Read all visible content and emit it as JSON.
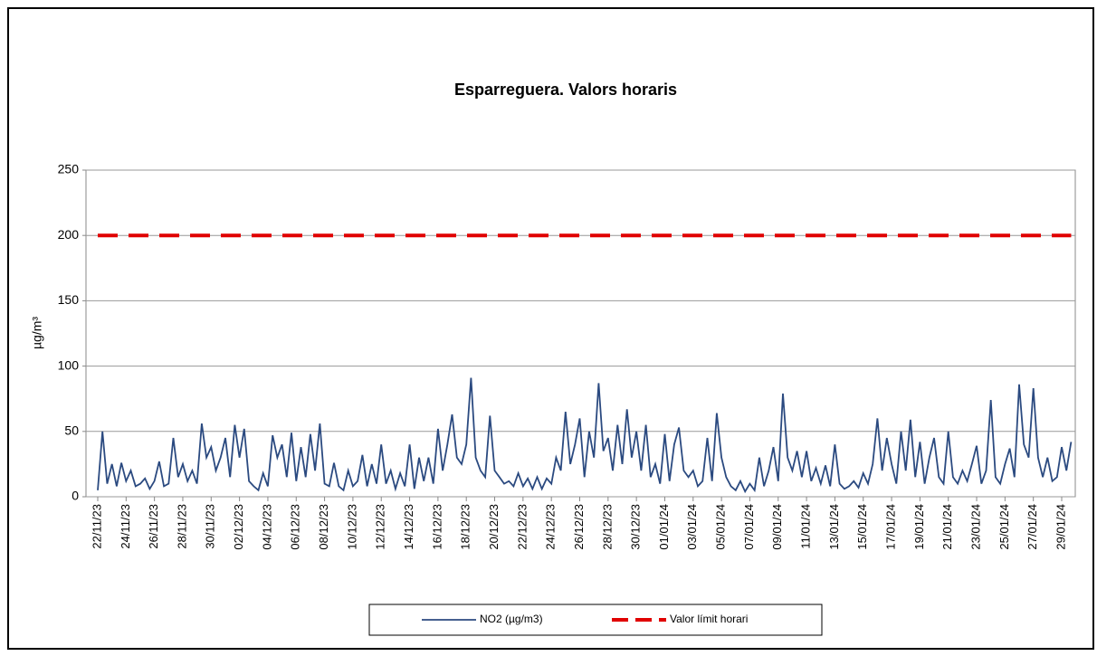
{
  "chart_data": {
    "type": "line",
    "title": "Esparreguera. Valors horaris",
    "ylabel": "µg/m³",
    "categories": [
      "22/11/23",
      null,
      null,
      null,
      null,
      null,
      "24/11/23",
      null,
      null,
      null,
      null,
      null,
      "26/11/23",
      null,
      null,
      null,
      null,
      null,
      "28/11/23",
      null,
      null,
      null,
      null,
      null,
      "30/11/23",
      null,
      null,
      null,
      null,
      null,
      "02/12/23",
      null,
      null,
      null,
      null,
      null,
      "04/12/23",
      null,
      null,
      null,
      null,
      null,
      "06/12/23",
      null,
      null,
      null,
      null,
      null,
      "08/12/23",
      null,
      null,
      null,
      null,
      null,
      "10/12/23",
      null,
      null,
      null,
      null,
      null,
      "12/12/23",
      null,
      null,
      null,
      null,
      null,
      "14/12/23",
      null,
      null,
      null,
      null,
      null,
      "16/12/23",
      null,
      null,
      null,
      null,
      null,
      "18/12/23",
      null,
      null,
      null,
      null,
      null,
      "20/12/23",
      null,
      null,
      null,
      null,
      null,
      "22/12/23",
      null,
      null,
      null,
      null,
      null,
      "24/12/23",
      null,
      null,
      null,
      null,
      null,
      "26/12/23",
      null,
      null,
      null,
      null,
      null,
      "28/12/23",
      null,
      null,
      null,
      null,
      null,
      "30/12/23",
      null,
      null,
      null,
      null,
      null,
      "01/01/24",
      null,
      null,
      null,
      null,
      null,
      "03/01/24",
      null,
      null,
      null,
      null,
      null,
      "05/01/24",
      null,
      null,
      null,
      null,
      null,
      "07/01/24",
      null,
      null,
      null,
      null,
      null,
      "09/01/24",
      null,
      null,
      null,
      null,
      null,
      "11/01/24",
      null,
      null,
      null,
      null,
      null,
      "13/01/24",
      null,
      null,
      null,
      null,
      null,
      "15/01/24",
      null,
      null,
      null,
      null,
      null,
      "17/01/24",
      null,
      null,
      null,
      null,
      null,
      "19/01/24",
      null,
      null,
      null,
      null,
      null,
      "21/01/24",
      null,
      null,
      null,
      null,
      null,
      "23/01/24",
      null,
      null,
      null,
      null,
      null,
      "25/01/24",
      null,
      null,
      null,
      null,
      null,
      "27/01/24",
      null,
      null,
      null,
      null,
      null,
      "29/01/24",
      null,
      null
    ],
    "series": [
      {
        "name": "NO2 (µg/m3)",
        "color": "#2b4a80",
        "values": [
          5,
          50,
          10,
          25,
          8,
          26,
          12,
          20,
          8,
          10,
          14,
          6,
          12,
          27,
          8,
          10,
          45,
          15,
          25,
          12,
          20,
          10,
          56,
          30,
          38,
          20,
          30,
          45,
          15,
          55,
          30,
          52,
          12,
          8,
          5,
          18,
          8,
          47,
          30,
          40,
          15,
          49,
          12,
          38,
          15,
          48,
          20,
          56,
          10,
          8,
          26,
          8,
          5,
          20,
          8,
          12,
          32,
          8,
          25,
          10,
          40,
          10,
          20,
          6,
          18,
          8,
          40,
          6,
          30,
          12,
          30,
          10,
          52,
          20,
          40,
          63,
          30,
          25,
          40,
          91,
          30,
          20,
          15,
          62,
          20,
          15,
          10,
          12,
          8,
          18,
          8,
          14,
          6,
          15,
          6,
          14,
          10,
          30,
          20,
          65,
          25,
          40,
          60,
          15,
          50,
          30,
          87,
          35,
          45,
          20,
          55,
          25,
          67,
          30,
          50,
          20,
          55,
          15,
          25,
          10,
          48,
          12,
          40,
          53,
          20,
          15,
          20,
          8,
          12,
          45,
          12,
          64,
          30,
          15,
          8,
          5,
          12,
          4,
          10,
          5,
          30,
          8,
          20,
          38,
          12,
          79,
          30,
          20,
          35,
          15,
          35,
          12,
          22,
          10,
          24,
          8,
          40,
          10,
          6,
          8,
          12,
          7,
          18,
          10,
          25,
          60,
          20,
          45,
          25,
          10,
          50,
          20,
          59,
          15,
          42,
          10,
          30,
          45,
          15,
          10,
          50,
          15,
          10,
          20,
          12,
          25,
          39,
          10,
          20,
          74,
          15,
          10,
          25,
          37,
          15,
          86,
          40,
          30,
          83,
          30,
          15,
          30,
          12,
          15,
          38,
          20,
          42
        ]
      }
    ],
    "hlines": [
      {
        "name": "Valor límit horari",
        "color": "#e00000",
        "value": 200
      }
    ],
    "ylim": [
      0,
      250
    ],
    "yticks": [
      0,
      50,
      100,
      150,
      200,
      250
    ],
    "grid": true
  }
}
